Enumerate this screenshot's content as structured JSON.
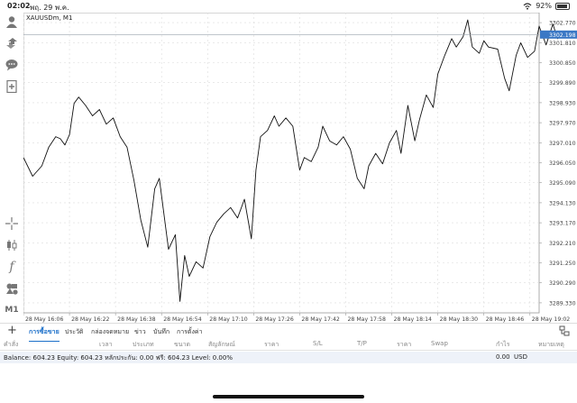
{
  "status_bar": {
    "time": "02:02",
    "date": "พฤ. 29 พ.ค.",
    "battery": "92%",
    "battery_level": 0.92
  },
  "chart": {
    "symbol_label": "XAUUSDm, M1",
    "current_price": "3302.198",
    "accent": "#3b78c5"
  },
  "sidebar": {
    "icons": [
      "user-icon",
      "trade-arrows-icon",
      "chat-icon",
      "new-document-icon",
      "crosshair-icon",
      "candles-icon",
      "indicator-f-icon",
      "objects-icon"
    ],
    "timeframe": "M1"
  },
  "tabs": {
    "add": "+",
    "items": [
      "การซื้อขาย",
      "ประวัติ",
      "กล่องจดหมาย",
      "ข่าว",
      "บันทึก",
      "การตั้งค่า"
    ],
    "active": 0
  },
  "columns": [
    "คำสั่ง",
    "เวลา",
    "ประเภท",
    "ขนาด",
    "สัญลักษณ์",
    "ราคา",
    "S/L",
    "T/P",
    "ราคา",
    "Swap",
    "กำไร",
    "หมายเหตุ"
  ],
  "balance": {
    "text": "Balance: 604.23 Equity: 604.23 หลักประกัน: 0.00 ฟรี: 604.23 Level: 0.00%",
    "amount": "0.00",
    "currency": "USD"
  },
  "chart_data": {
    "type": "line",
    "title": "XAUUSDm, M1",
    "x_labels": [
      "28 May 16:06",
      "28 May 16:22",
      "28 May 16:38",
      "28 May 16:54",
      "28 May 17:10",
      "28 May 17:26",
      "28 May 17:42",
      "28 May 17:58",
      "28 May 18:14",
      "28 May 18:30",
      "28 May 18:46",
      "28 May 19:02"
    ],
    "y_ticks": [
      "3302.770",
      "3301.810",
      "3300.850",
      "3299.890",
      "3298.930",
      "3297.970",
      "3297.010",
      "3296.050",
      "3295.090",
      "3294.130",
      "3293.170",
      "3292.210",
      "3291.250",
      "3290.290",
      "3289.330"
    ],
    "ylim": [
      3288.85,
      3303.25
    ],
    "xlim": [
      0,
      11.2
    ],
    "grid": true,
    "current_price": 3302.198,
    "series": [
      {
        "values": [
          [
            0.0,
            3296.3
          ],
          [
            0.2,
            3295.4
          ],
          [
            0.4,
            3295.9
          ],
          [
            0.55,
            3296.8
          ],
          [
            0.7,
            3297.3
          ],
          [
            0.8,
            3297.2
          ],
          [
            0.9,
            3296.9
          ],
          [
            1.0,
            3297.4
          ],
          [
            1.1,
            3298.9
          ],
          [
            1.2,
            3299.2
          ],
          [
            1.35,
            3298.8
          ],
          [
            1.5,
            3298.3
          ],
          [
            1.65,
            3298.6
          ],
          [
            1.8,
            3297.9
          ],
          [
            1.95,
            3298.2
          ],
          [
            2.1,
            3297.3
          ],
          [
            2.25,
            3296.8
          ],
          [
            2.4,
            3295.2
          ],
          [
            2.55,
            3293.3
          ],
          [
            2.7,
            3292.0
          ],
          [
            2.85,
            3294.8
          ],
          [
            2.95,
            3295.3
          ],
          [
            3.05,
            3293.6
          ],
          [
            3.15,
            3291.9
          ],
          [
            3.3,
            3292.6
          ],
          [
            3.4,
            3289.4
          ],
          [
            3.5,
            3291.6
          ],
          [
            3.6,
            3290.6
          ],
          [
            3.75,
            3291.3
          ],
          [
            3.9,
            3291.0
          ],
          [
            4.05,
            3292.5
          ],
          [
            4.2,
            3293.2
          ],
          [
            4.35,
            3293.6
          ],
          [
            4.5,
            3293.9
          ],
          [
            4.65,
            3293.4
          ],
          [
            4.8,
            3294.3
          ],
          [
            4.95,
            3292.4
          ],
          [
            5.05,
            3295.7
          ],
          [
            5.15,
            3297.3
          ],
          [
            5.3,
            3297.6
          ],
          [
            5.45,
            3298.3
          ],
          [
            5.55,
            3297.8
          ],
          [
            5.7,
            3298.2
          ],
          [
            5.85,
            3297.8
          ],
          [
            6.0,
            3295.7
          ],
          [
            6.1,
            3296.3
          ],
          [
            6.25,
            3296.1
          ],
          [
            6.4,
            3296.8
          ],
          [
            6.5,
            3297.8
          ],
          [
            6.65,
            3297.1
          ],
          [
            6.8,
            3296.9
          ],
          [
            6.95,
            3297.3
          ],
          [
            7.1,
            3296.7
          ],
          [
            7.25,
            3295.3
          ],
          [
            7.4,
            3294.8
          ],
          [
            7.5,
            3295.9
          ],
          [
            7.65,
            3296.5
          ],
          [
            7.8,
            3296.0
          ],
          [
            7.95,
            3297.0
          ],
          [
            8.1,
            3297.6
          ],
          [
            8.2,
            3296.5
          ],
          [
            8.35,
            3298.8
          ],
          [
            8.5,
            3297.1
          ],
          [
            8.6,
            3298.1
          ],
          [
            8.75,
            3299.3
          ],
          [
            8.9,
            3298.7
          ],
          [
            9.0,
            3300.3
          ],
          [
            9.15,
            3301.2
          ],
          [
            9.3,
            3302.0
          ],
          [
            9.4,
            3301.6
          ],
          [
            9.55,
            3302.1
          ],
          [
            9.65,
            3302.9
          ],
          [
            9.75,
            3301.6
          ],
          [
            9.9,
            3301.3
          ],
          [
            10.0,
            3301.9
          ],
          [
            10.1,
            3301.6
          ],
          [
            10.3,
            3301.5
          ],
          [
            10.45,
            3300.1
          ],
          [
            10.55,
            3299.5
          ],
          [
            10.7,
            3301.2
          ],
          [
            10.8,
            3301.8
          ],
          [
            10.95,
            3301.1
          ],
          [
            11.1,
            3301.4
          ],
          [
            11.2,
            3302.6
          ],
          [
            11.35,
            3301.7
          ],
          [
            11.5,
            3302.7
          ],
          [
            11.6,
            3302.0
          ],
          [
            11.7,
            3302.2
          ]
        ]
      }
    ]
  }
}
